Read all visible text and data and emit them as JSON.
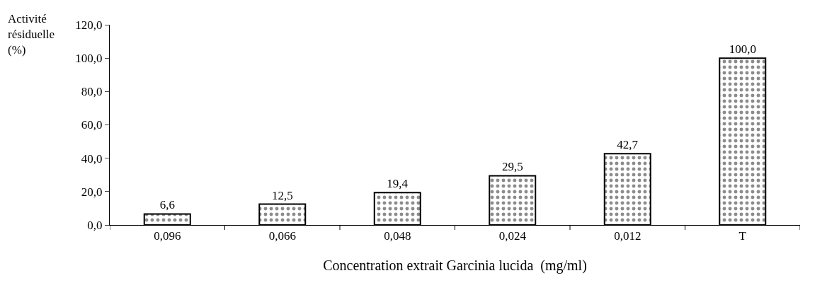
{
  "chart_data": {
    "type": "bar",
    "ylabel": "Activité résiduelle (%)",
    "xlabel": "Concentration extrait Garcinia lucida  (mg/ml)",
    "categories": [
      "0,096",
      "0,066",
      "0,048",
      "0,024",
      "0,012",
      "T"
    ],
    "values": [
      6.6,
      12.5,
      19.4,
      29.5,
      42.7,
      100.0
    ],
    "value_labels": [
      "6,6",
      "12,5",
      "19,4",
      "29,5",
      "42,7",
      "100,0"
    ],
    "color": "#000000",
    "ylim": [
      0,
      120
    ],
    "yticks": [
      {
        "value": 0,
        "label": "0,0"
      },
      {
        "value": 20,
        "label": "20,0"
      },
      {
        "value": 40,
        "label": "40,0"
      },
      {
        "value": 60,
        "label": "60,0"
      },
      {
        "value": 80,
        "label": "80,0"
      },
      {
        "value": 100,
        "label": "100,0"
      },
      {
        "value": 120,
        "label": "120,0"
      }
    ],
    "legend": false
  }
}
